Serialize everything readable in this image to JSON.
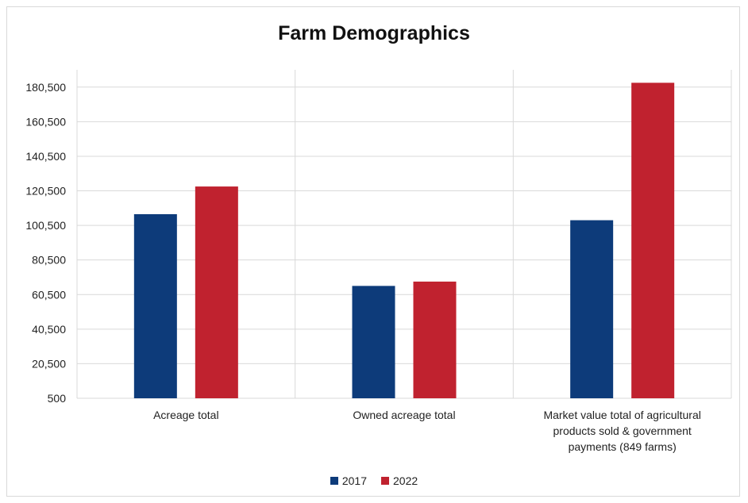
{
  "chart_data": {
    "type": "bar",
    "title": "Farm Demographics",
    "categories": [
      [
        "Acreage total"
      ],
      [
        "Owned acreage total"
      ],
      [
        "Market value total of agricultural",
        "products sold & government",
        "payments (849 farms)"
      ]
    ],
    "series": [
      {
        "name": "2017",
        "color": "#0d3b7a",
        "values": [
          107000,
          65500,
          103500
        ]
      },
      {
        "name": "2022",
        "color": "#c0222f",
        "values": [
          123000,
          68000,
          183000
        ]
      }
    ],
    "ylim": [
      500,
      190500
    ],
    "yticks": [
      500,
      20500,
      40500,
      60500,
      80500,
      100500,
      120500,
      140500,
      160500,
      180500
    ],
    "ytick_labels": [
      "500",
      "20,500",
      "40,500",
      "60,500",
      "80,500",
      "100,500",
      "120,500",
      "140,500",
      "160,500",
      "180,500"
    ],
    "grid": true,
    "legend_position": "bottom"
  }
}
